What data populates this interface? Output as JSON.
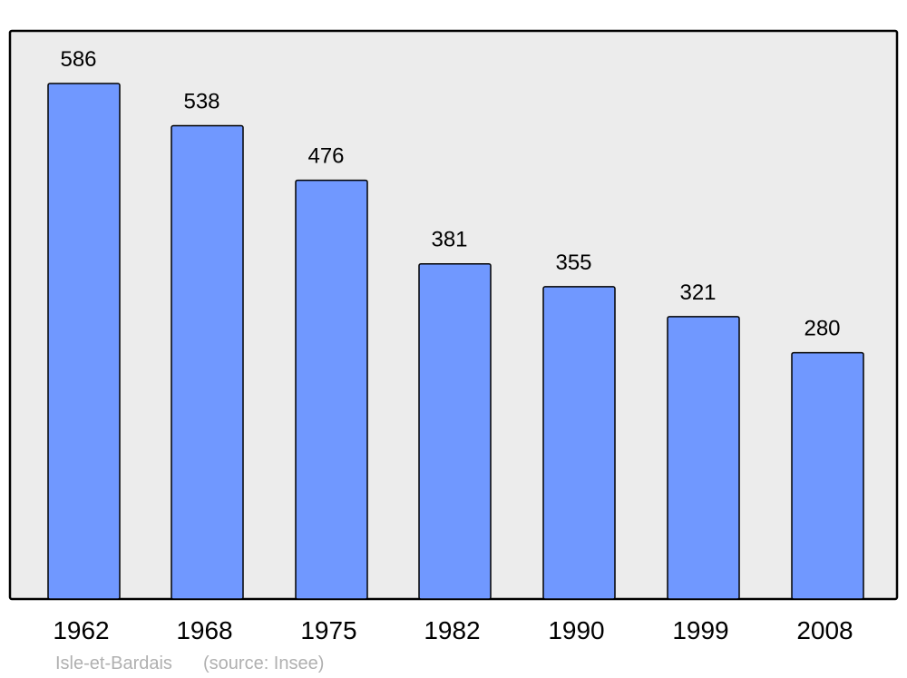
{
  "chart_data": {
    "type": "bar",
    "categories": [
      "1962",
      "1968",
      "1975",
      "1982",
      "1990",
      "1999",
      "2008"
    ],
    "values": [
      586,
      538,
      476,
      381,
      355,
      321,
      280
    ],
    "title": "",
    "xlabel": "",
    "ylabel": "",
    "ylim": [
      0,
      646
    ],
    "grid": false,
    "data_labels": true,
    "colors": {
      "bar": "#7098ff",
      "background": "#ececec",
      "border": "#000000"
    }
  },
  "footer": {
    "place": "Isle-et-Bardais",
    "source": "(source: Insee)"
  }
}
